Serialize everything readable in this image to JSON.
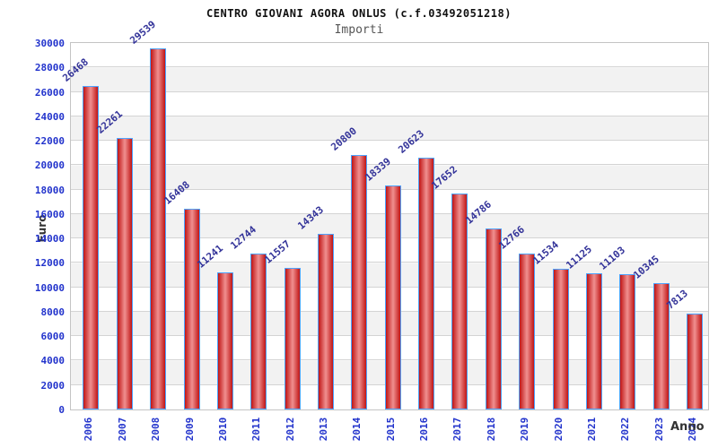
{
  "chart_data": {
    "type": "bar",
    "title": "CENTRO GIOVANI AGORA ONLUS (c.f.03492051218)",
    "subtitle": "Importi",
    "xlabel": "Anno",
    "ylabel": "Euro",
    "categories": [
      "2006",
      "2007",
      "2008",
      "2009",
      "2010",
      "2011",
      "2012",
      "2013",
      "2014",
      "2015",
      "2016",
      "2017",
      "2018",
      "2019",
      "2020",
      "2021",
      "2022",
      "2023",
      "2024"
    ],
    "values": [
      26468,
      22261,
      29539,
      16408,
      11241,
      12744,
      11557,
      14343,
      20800,
      18339,
      20623,
      17652,
      14786,
      12766,
      11534,
      11125,
      11103,
      10345,
      7813
    ],
    "ylim": [
      0,
      30000
    ],
    "ytick_step": 2000,
    "yticks": [
      "0",
      "2000",
      "4000",
      "6000",
      "8000",
      "10000",
      "12000",
      "14000",
      "16000",
      "18000",
      "20000",
      "22000",
      "24000",
      "26000",
      "28000",
      "30000"
    ],
    "grid": true,
    "legend": null,
    "layout": {
      "value_labels": "rotated above bars",
      "x_labels": "rotated vertical",
      "background_bands": "alternating white / light gray"
    },
    "colors": {
      "bar_edge": "#c01515",
      "bar_center": "#f09090",
      "bar_border": "#4da3ff",
      "axis_tick_text": "#2233cc",
      "value_label_text": "#333399",
      "title_text": "#111111",
      "subtitle_text": "#555555",
      "axis_title_text": "#333333",
      "band_gray": "#f2f2f2",
      "gridline": "#d4d4d4"
    }
  }
}
